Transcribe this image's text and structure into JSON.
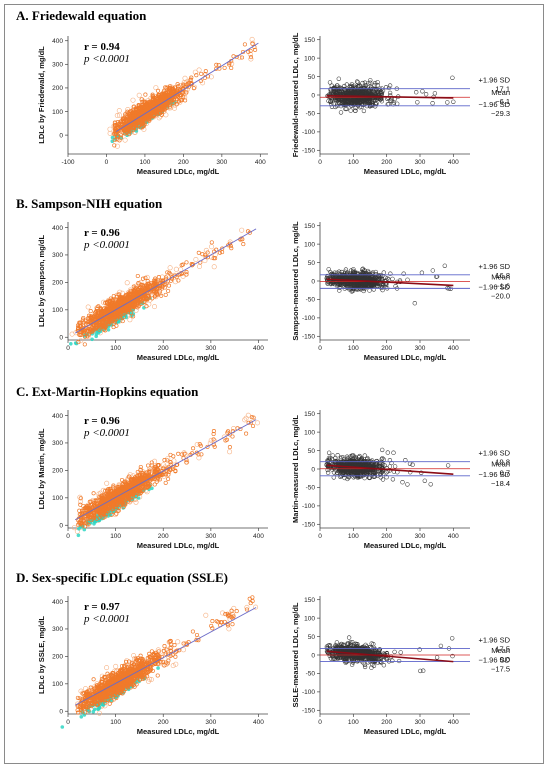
{
  "panels": [
    {
      "title": "A. Friedewald equation",
      "r": "r = 0.94",
      "p": "p <0.0001",
      "scatter": {
        "type": "scatter",
        "xlabel": "Measured LDLc, mg/dL",
        "ylabel": "LDLc by Friedewald, mg/dL",
        "xlim": [
          -100,
          420
        ],
        "ylim": [
          -80,
          420
        ],
        "xticks": [
          -100,
          0,
          100,
          200,
          300,
          400
        ],
        "yticks": [
          0,
          100,
          200,
          300,
          400
        ],
        "regression": [
          [
            25,
            15
          ],
          [
            395,
            390
          ]
        ]
      },
      "bland_altman": {
        "type": "scatter",
        "xlabel": "Measured LDLc, mg/dL",
        "ylabel": "Friedewald-measured LDLc, mg/dL",
        "xlim": [
          0,
          450
        ],
        "ylim": [
          -160,
          160
        ],
        "xticks": [
          0,
          100,
          200,
          300,
          400
        ],
        "yticks": [
          -150,
          -100,
          -50,
          0,
          50,
          100,
          150
        ],
        "upper": {
          "label": "+1.96 SD",
          "value": 17.1
        },
        "mean": {
          "label": "Mean",
          "value": -6.1
        },
        "lower": {
          "label": "-1.96 SD",
          "value": -29.3
        },
        "trend": [
          [
            20,
            -2
          ],
          [
            400,
            -8
          ]
        ]
      }
    },
    {
      "title": "B. Sampson-NIH equation",
      "r": "r = 0.96",
      "p": "p <0.0001",
      "scatter": {
        "type": "scatter",
        "xlabel": "Measured LDLc, mg/dL",
        "ylabel": "LDLc by Sampson, mg/dL",
        "xlim": [
          0,
          420
        ],
        "ylim": [
          -10,
          420
        ],
        "xticks": [
          0,
          100,
          200,
          300,
          400
        ],
        "yticks": [
          0,
          100,
          200,
          300,
          400
        ],
        "regression": [
          [
            15,
            15
          ],
          [
            395,
            395
          ]
        ]
      },
      "bland_altman": {
        "type": "scatter",
        "xlabel": "Measured LDLc, mg/dL",
        "ylabel": "Sampson-measured LDLc, mg/dL",
        "xlim": [
          0,
          450
        ],
        "ylim": [
          -160,
          160
        ],
        "xticks": [
          0,
          100,
          200,
          300,
          400
        ],
        "yticks": [
          -150,
          -100,
          -50,
          0,
          50,
          100,
          150
        ],
        "upper": {
          "label": "+1.96 SD",
          "value": 16.8
        },
        "mean": {
          "label": "Mean",
          "value": -1.6
        },
        "lower": {
          "label": "-1.96 SD",
          "value": -20.0
        },
        "trend": [
          [
            20,
            5
          ],
          [
            400,
            -12
          ]
        ]
      }
    },
    {
      "title": "C. Ext-Martin-Hopkins equation",
      "r": "r = 0.96",
      "p": "p <0.0001",
      "scatter": {
        "type": "scatter",
        "xlabel": "Measured LDLc, mg/dL",
        "ylabel": "LDLc by Martin, mg/dL",
        "xlim": [
          0,
          420
        ],
        "ylim": [
          -10,
          420
        ],
        "xticks": [
          0,
          100,
          200,
          300,
          400
        ],
        "yticks": [
          0,
          100,
          200,
          300,
          400
        ],
        "regression": [
          [
            15,
            20
          ],
          [
            395,
            385
          ]
        ]
      },
      "bland_altman": {
        "type": "scatter",
        "xlabel": "Measured LDLc, mg/dL",
        "ylabel": "Martin-measured LDLc, mg/dL",
        "xlim": [
          0,
          450
        ],
        "ylim": [
          -160,
          160
        ],
        "xticks": [
          0,
          100,
          200,
          300,
          400
        ],
        "yticks": [
          -150,
          -100,
          -50,
          0,
          50,
          100,
          150
        ],
        "upper": {
          "label": "+1.96 SD",
          "value": 19.8
        },
        "mean": {
          "label": "Mean",
          "value": 0.7
        },
        "lower": {
          "label": "-1.96 SD",
          "value": -18.4
        },
        "trend": [
          [
            20,
            10
          ],
          [
            400,
            -14
          ]
        ]
      }
    },
    {
      "title": "D. Sex-specific LDLc equation (SSLE)",
      "r": "r = 0.97",
      "p": "p <0.0001",
      "scatter": {
        "type": "scatter",
        "xlabel": "Measured LDLc, mg/dL",
        "ylabel": "LDLc by SSLE, mg/dL",
        "xlim": [
          0,
          420
        ],
        "ylim": [
          -10,
          420
        ],
        "xticks": [
          0,
          100,
          200,
          300,
          400
        ],
        "yticks": [
          0,
          100,
          200,
          300,
          400
        ],
        "regression": [
          [
            15,
            22
          ],
          [
            395,
            378
          ]
        ]
      },
      "bland_altman": {
        "type": "scatter",
        "xlabel": "Measured LDLc, mg/dL",
        "ylabel": "SSLE-measured LDLc, mg/dL",
        "xlim": [
          0,
          450
        ],
        "ylim": [
          -160,
          160
        ],
        "xticks": [
          0,
          100,
          200,
          300,
          400
        ],
        "yticks": [
          -150,
          -100,
          -50,
          0,
          50,
          100,
          150
        ],
        "upper": {
          "label": "+1.96 SD",
          "value": 17.5
        },
        "mean": {
          "label": "Mean",
          "value": 0.0
        },
        "lower": {
          "label": "-1.96 SD",
          "value": -17.5
        },
        "trend": [
          [
            20,
            10
          ],
          [
            400,
            -18
          ]
        ]
      }
    }
  ],
  "colors": {
    "scatter_orange": "#f07a2a",
    "scatter_light_orange": "#f6b183",
    "scatter_teal": "#2fd6c4",
    "ba_points": "#333333",
    "sd_line": "#5b63c9",
    "mean_line": "#d02020",
    "mean_text": "#c81e1e",
    "trend_line": "#8b0c16",
    "axis": "#444444",
    "regression": "#6b6bc8"
  },
  "chart_data": [
    {
      "type": "scatter",
      "title": "A. Friedewald equation",
      "xlabel": "Measured LDLc, mg/dL",
      "ylabel": "LDLc by Friedewald, mg/dL",
      "annotations": [
        "r = 0.94",
        "p <0.0001"
      ],
      "xlim": [
        -100,
        420
      ],
      "ylim": [
        -80,
        420
      ]
    },
    {
      "type": "scatter",
      "title": "",
      "xlabel": "Measured LDLc, mg/dL",
      "ylabel": "Friedewald-measured LDLc, mg/dL",
      "reference_lines": {
        "+1.96 SD": 17.1,
        "Mean": -6.1,
        "-1.96 SD": -29.3
      },
      "xlim": [
        0,
        450
      ],
      "ylim": [
        -160,
        160
      ]
    },
    {
      "type": "scatter",
      "title": "B. Sampson-NIH equation",
      "xlabel": "Measured LDLc, mg/dL",
      "ylabel": "LDLc by Sampson, mg/dL",
      "annotations": [
        "r = 0.96",
        "p <0.0001"
      ],
      "xlim": [
        0,
        420
      ],
      "ylim": [
        -10,
        420
      ]
    },
    {
      "type": "scatter",
      "title": "",
      "xlabel": "Measured LDLc, mg/dL",
      "ylabel": "Sampson-measured LDLc, mg/dL",
      "reference_lines": {
        "+1.96 SD": 16.8,
        "Mean": -1.6,
        "-1.96 SD": -20.0
      },
      "xlim": [
        0,
        450
      ],
      "ylim": [
        -160,
        160
      ]
    },
    {
      "type": "scatter",
      "title": "C. Ext-Martin-Hopkins equation",
      "xlabel": "Measured LDLc, mg/dL",
      "ylabel": "LDLc by Martin, mg/dL",
      "annotations": [
        "r = 0.96",
        "p <0.0001"
      ],
      "xlim": [
        0,
        420
      ],
      "ylim": [
        -10,
        420
      ]
    },
    {
      "type": "scatter",
      "title": "",
      "xlabel": "Measured LDLc, mg/dL",
      "ylabel": "Martin-measured LDLc, mg/dL",
      "reference_lines": {
        "+1.96 SD": 19.8,
        "Mean": 0.7,
        "-1.96 SD": -18.4
      },
      "xlim": [
        0,
        450
      ],
      "ylim": [
        -160,
        160
      ]
    },
    {
      "type": "scatter",
      "title": "D. Sex-specific LDLc equation (SSLE)",
      "xlabel": "Measured LDLc, mg/dL",
      "ylabel": "LDLc by SSLE, mg/dL",
      "annotations": [
        "r = 0.97",
        "p <0.0001"
      ],
      "xlim": [
        0,
        420
      ],
      "ylim": [
        -10,
        420
      ]
    },
    {
      "type": "scatter",
      "title": "",
      "xlabel": "Measured LDLc, mg/dL",
      "ylabel": "SSLE-measured LDLc, mg/dL",
      "reference_lines": {
        "+1.96 SD": 17.5,
        "Mean": 0.0,
        "-1.96 SD": -17.5
      },
      "xlim": [
        0,
        450
      ],
      "ylim": [
        -160,
        160
      ]
    }
  ]
}
